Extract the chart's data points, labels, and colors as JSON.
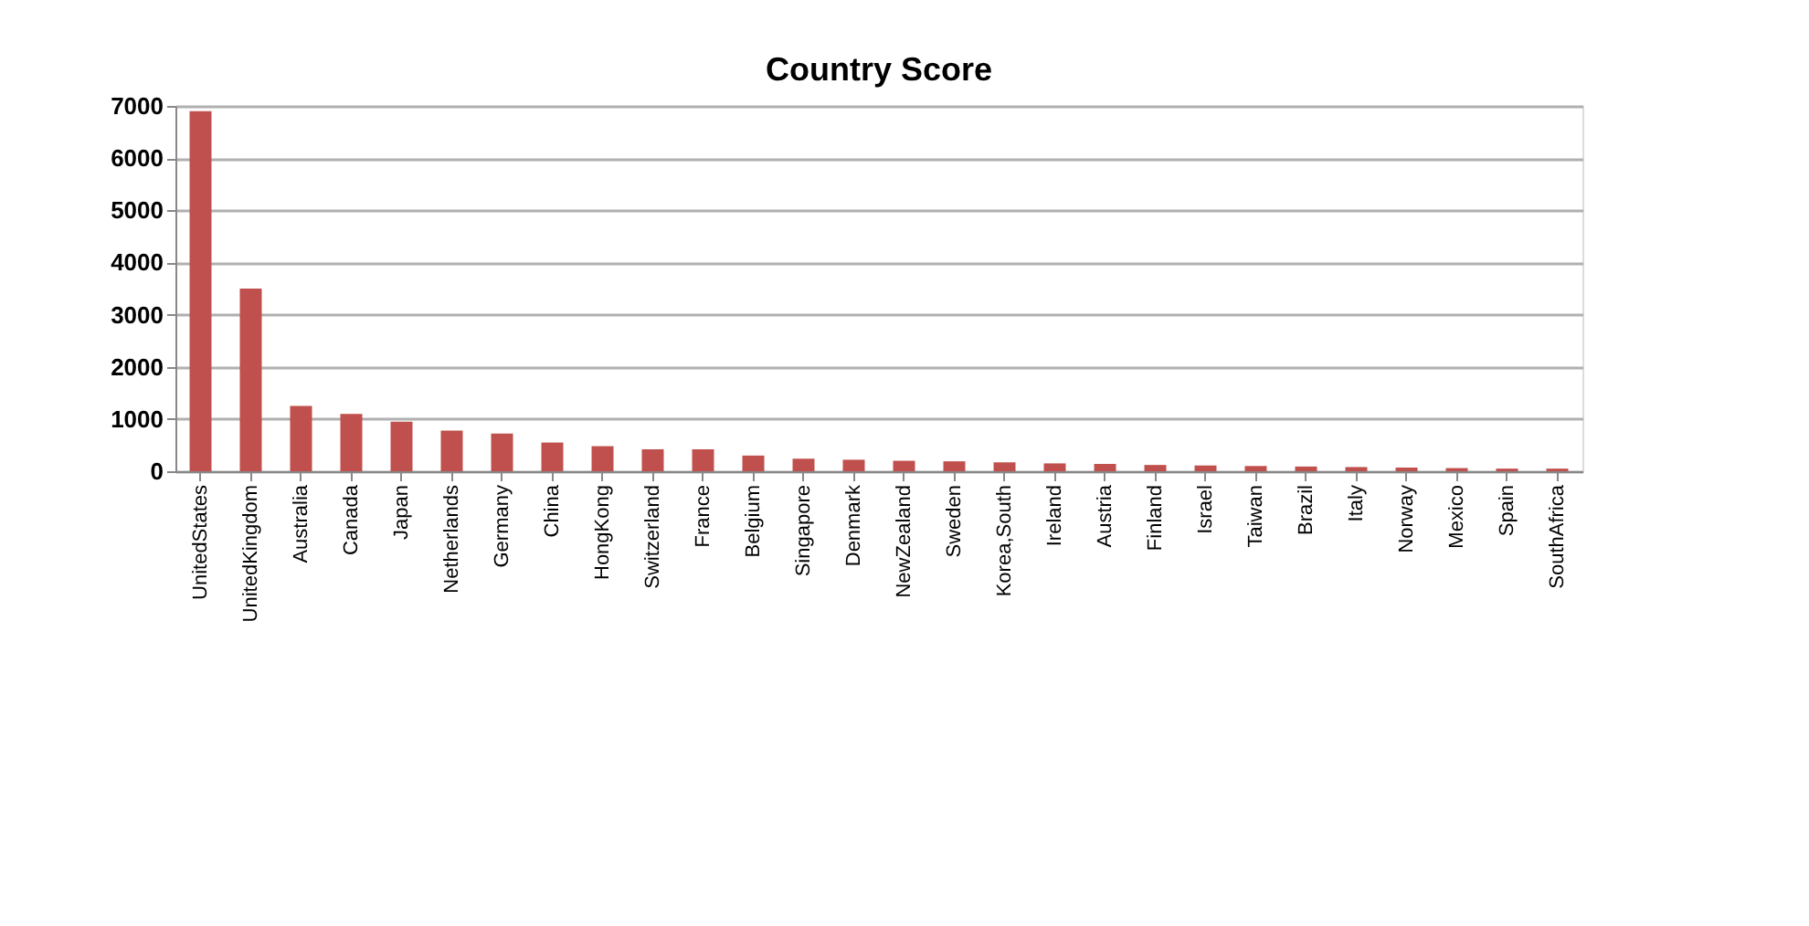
{
  "chart_data": {
    "type": "bar",
    "title": "Country Score",
    "categories": [
      "UnitedStates",
      "UnitedKingdom",
      "Australia",
      "Canada",
      "Japan",
      "Netherlands",
      "Germany",
      "China",
      "HongKong",
      "Switzerland",
      "France",
      "Belgium",
      "Singapore",
      "Denmark",
      "NewZealand",
      "Sweden",
      "Korea,South",
      "Ireland",
      "Austria",
      "Finland",
      "Israel",
      "Taiwan",
      "Brazil",
      "Italy",
      "Norway",
      "Mexico",
      "Spain",
      "SouthAfrica"
    ],
    "values": [
      6900,
      3500,
      1250,
      1100,
      950,
      780,
      720,
      550,
      480,
      420,
      420,
      300,
      240,
      220,
      200,
      190,
      170,
      150,
      140,
      120,
      110,
      100,
      90,
      80,
      70,
      60,
      50,
      50
    ],
    "color": "#c0504d",
    "ylim": [
      0,
      7000
    ],
    "yticks": [
      0,
      1000,
      2000,
      3000,
      4000,
      5000,
      6000,
      7000
    ],
    "grid": "y"
  }
}
